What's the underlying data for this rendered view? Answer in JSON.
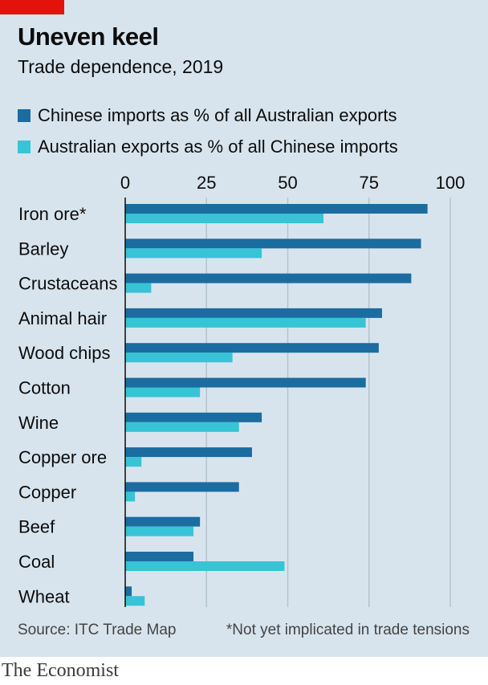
{
  "header": {
    "title": "Uneven keel",
    "subtitle": "Trade dependence, 2019"
  },
  "footer": {
    "source": "Source: ITC Trade Map",
    "note": "*Not yet implicated in trade tensions",
    "brand": "The Economist"
  },
  "colors": {
    "background": "#d7e4ee",
    "accent_red": "#e3120b",
    "series_dark": "#1b6ca0",
    "series_light": "#36c4d6",
    "gridline": "#b3c3d0"
  },
  "chart_data": {
    "type": "bar",
    "orientation": "horizontal",
    "title": "Uneven keel",
    "subtitle": "Trade dependence, 2019",
    "categories": [
      "Iron ore*",
      "Barley",
      "Crustaceans",
      "Animal hair",
      "Wood chips",
      "Cotton",
      "Wine",
      "Copper ore",
      "Copper",
      "Beef",
      "Coal",
      "Wheat"
    ],
    "series": [
      {
        "name": "Chinese imports as % of all Australian exports",
        "color": "#1b6ca0",
        "values": [
          93,
          91,
          88,
          79,
          78,
          74,
          42,
          39,
          35,
          23,
          21,
          2
        ]
      },
      {
        "name": "Australian exports as % of all Chinese imports",
        "color": "#36c4d6",
        "values": [
          61,
          42,
          8,
          74,
          33,
          23,
          35,
          5,
          3,
          21,
          49,
          6
        ]
      }
    ],
    "xlim": [
      0,
      100
    ],
    "xticks": [
      0,
      25,
      50,
      75,
      100
    ],
    "grid": true,
    "legend": "top-left"
  }
}
